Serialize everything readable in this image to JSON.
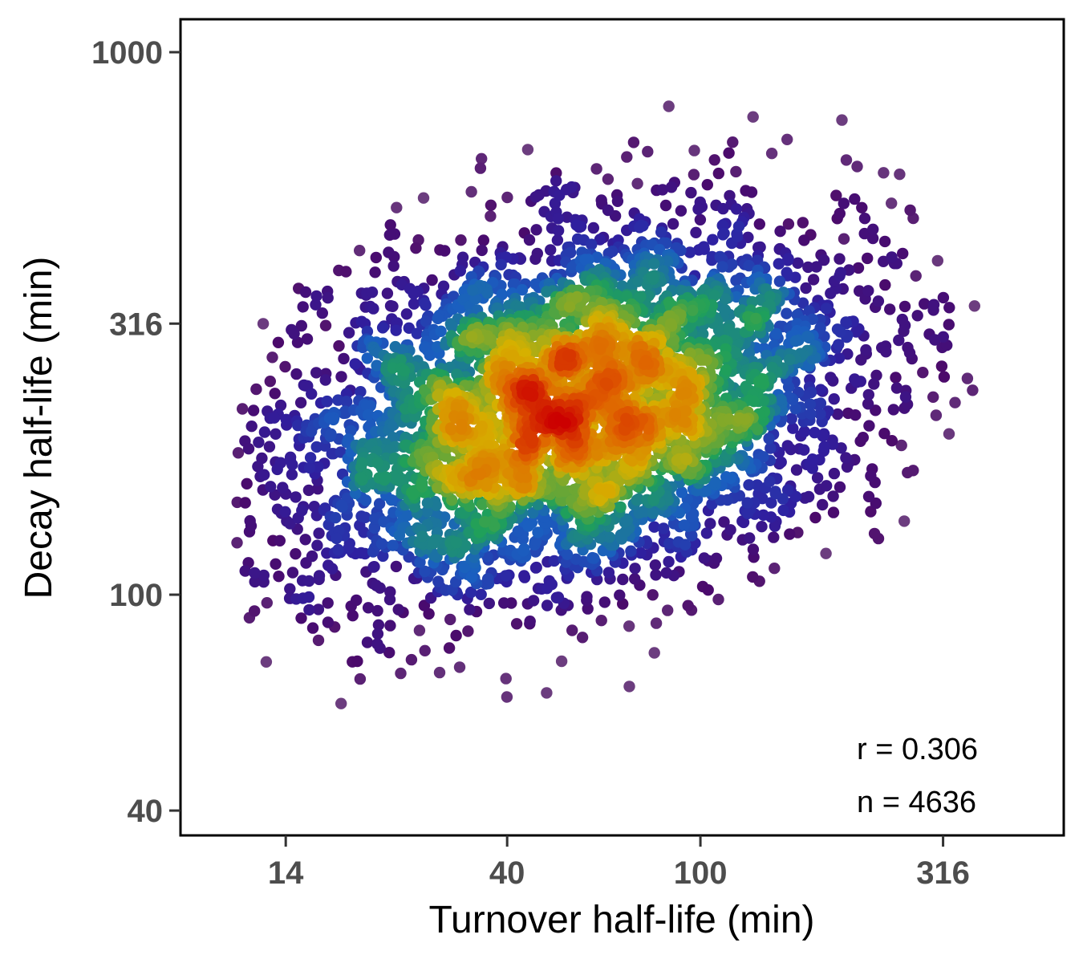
{
  "chart_data": {
    "type": "scatter",
    "xlabel": "Turnover half-life (min)",
    "ylabel": "Decay half-life (min)",
    "x_scale": "log10",
    "y_scale": "log10",
    "xlim": [
      8.5,
      560
    ],
    "ylim": [
      36,
      1150
    ],
    "x_ticks": [
      {
        "value": 14,
        "label": "14"
      },
      {
        "value": 40,
        "label": "40"
      },
      {
        "value": 100,
        "label": "100"
      },
      {
        "value": 316,
        "label": "316"
      }
    ],
    "y_ticks": [
      {
        "value": 40,
        "label": "40"
      },
      {
        "value": 100,
        "label": "100"
      },
      {
        "value": 316,
        "label": "316"
      },
      {
        "value": 1000,
        "label": "1000"
      }
    ],
    "grid": false,
    "color_encoding": "point density (low = grey-purple, high = red)",
    "density_colors": [
      "#9e8a9e",
      "#4b0a6b",
      "#2f1fa0",
      "#1a5fc0",
      "#1fa05a",
      "#d6b000",
      "#e06000",
      "#cc0000"
    ],
    "annotations": {
      "r_text": "r = 0.306",
      "n_text": "n = 4636"
    },
    "summary": {
      "n_points": 4636,
      "pearson_r": 0.306,
      "density_peak": {
        "x": 60,
        "y": 270
      },
      "x_range_shown": [
        11,
        370
      ],
      "y_range_shown": [
        56,
        950
      ]
    }
  }
}
